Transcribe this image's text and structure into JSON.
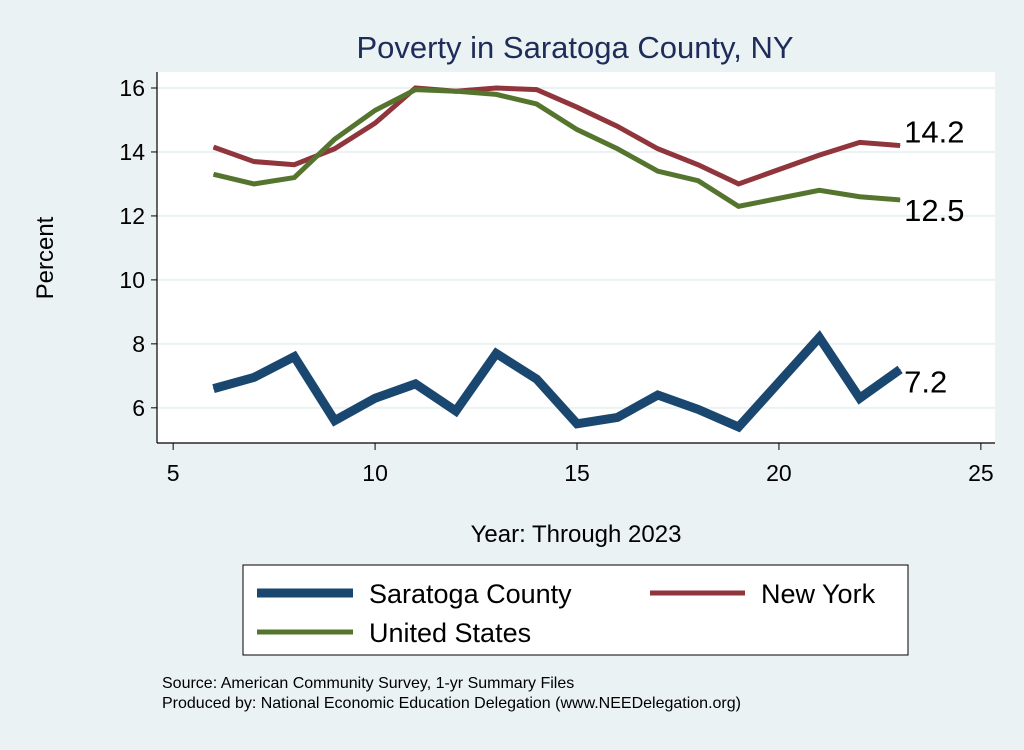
{
  "chart_data": {
    "type": "line",
    "title": "Poverty in Saratoga County, NY",
    "xlabel": "Year: Through 2023",
    "ylabel": "Percent",
    "xlim": [
      4.6,
      25.35
    ],
    "ylim": [
      4.9,
      16.5
    ],
    "xticks": [
      5,
      10,
      15,
      20,
      25
    ],
    "yticks": [
      6,
      8,
      10,
      12,
      14,
      16
    ],
    "grid": "horizontal",
    "legend_position": "bottom",
    "series": [
      {
        "name": "Saratoga County",
        "color": "#1a476f",
        "x": [
          6,
          7,
          8,
          9,
          10,
          11,
          12,
          13,
          14,
          15,
          16,
          17,
          18,
          19,
          21,
          22,
          23
        ],
        "y": [
          6.6,
          6.95,
          7.6,
          5.6,
          6.3,
          6.75,
          5.9,
          7.7,
          6.9,
          5.5,
          5.7,
          6.4,
          5.95,
          5.4,
          8.2,
          6.3,
          7.2
        ],
        "end_label": "7.2"
      },
      {
        "name": "New York",
        "color": "#90353b",
        "x": [
          6,
          7,
          8,
          9,
          10,
          11,
          12,
          13,
          14,
          15,
          16,
          17,
          18,
          19,
          21,
          22,
          23
        ],
        "y": [
          14.15,
          13.7,
          13.6,
          14.1,
          14.9,
          16.0,
          15.9,
          16.0,
          15.95,
          15.4,
          14.8,
          14.1,
          13.6,
          13.0,
          13.9,
          14.3,
          14.2
        ],
        "end_label": "14.2"
      },
      {
        "name": "United States",
        "color": "#55752f",
        "x": [
          6,
          7,
          8,
          9,
          10,
          11,
          12,
          13,
          14,
          15,
          16,
          17,
          18,
          19,
          21,
          22,
          23
        ],
        "y": [
          13.3,
          13.0,
          13.2,
          14.4,
          15.3,
          15.95,
          15.9,
          15.8,
          15.5,
          14.7,
          14.1,
          13.4,
          13.1,
          12.3,
          12.8,
          12.6,
          12.5
        ],
        "end_label": "12.5"
      }
    ]
  },
  "notes": {
    "source": "Source: American Community Survey, 1-yr Summary Files",
    "produced": "Produced by: National Economic Education Delegation (www.NEEDelegation.org)"
  }
}
